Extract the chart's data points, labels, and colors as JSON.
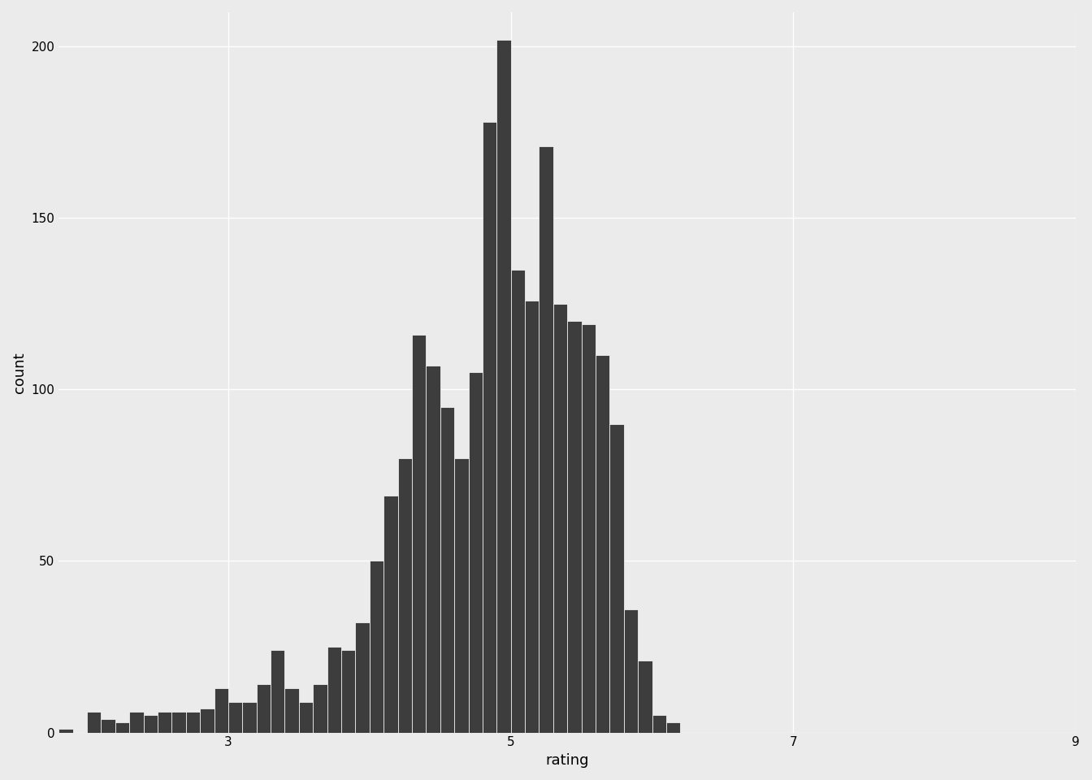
{
  "bar_left_edges": [
    1.8,
    2.0,
    2.1,
    2.2,
    2.3,
    2.4,
    2.5,
    2.6,
    2.7,
    2.8,
    2.9,
    3.0,
    3.1,
    3.2,
    3.3,
    3.4,
    3.5,
    3.6,
    3.7,
    3.8,
    3.9,
    4.0,
    4.1,
    4.2,
    4.3,
    4.4,
    4.5,
    4.6,
    4.7,
    4.8,
    4.9,
    5.0,
    5.1,
    5.2,
    5.3,
    5.4,
    5.5,
    5.6,
    5.7,
    5.8,
    5.9,
    6.0,
    6.1,
    6.2,
    6.3,
    6.4,
    6.5,
    6.6,
    6.7,
    6.8,
    6.9,
    7.0,
    7.1,
    7.2,
    7.3,
    7.4,
    7.5,
    7.6,
    7.7,
    7.8,
    7.9,
    8.0,
    8.1,
    8.2,
    8.3,
    8.4,
    8.5,
    8.6,
    8.7,
    8.8
  ],
  "bar_heights": [
    1,
    6,
    4,
    3,
    6,
    5,
    6,
    6,
    6,
    7,
    13,
    9,
    9,
    14,
    24,
    13,
    9,
    14,
    25,
    24,
    32,
    50,
    69,
    80,
    116,
    107,
    95,
    80,
    105,
    178,
    202,
    135,
    126,
    171,
    125,
    120,
    119,
    110,
    90,
    36,
    21,
    5,
    3,
    0,
    0,
    0,
    0,
    0,
    0,
    0,
    0,
    0,
    0,
    0,
    0,
    0,
    0,
    0,
    0,
    0,
    0,
    0,
    0,
    0,
    0,
    0,
    0,
    0,
    0,
    0
  ],
  "bar_width": 0.1,
  "bar_color": "#3d3d3d",
  "bar_edgecolor": "white",
  "bar_linewidth": 0.5,
  "xlabel": "rating",
  "ylabel": "count",
  "xlim": [
    1.8,
    9.0
  ],
  "ylim": [
    0,
    210
  ],
  "xticks": [
    3,
    5,
    7,
    9
  ],
  "yticks": [
    0,
    50,
    100,
    150,
    200
  ],
  "background_color": "#ebebeb",
  "grid_color": "white",
  "tick_fontsize": 11,
  "label_fontsize": 13
}
